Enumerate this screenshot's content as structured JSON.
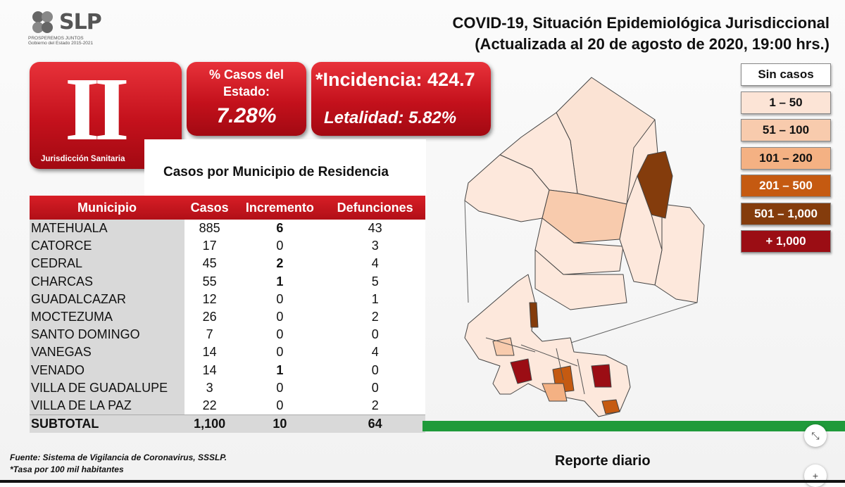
{
  "logo": {
    "text": "SLP",
    "line1": "PROSPEREMOS JUNTOS",
    "line2": "Gobierno del Estado 2015-2021"
  },
  "title": {
    "line1": "COVID-19, Situación Epidemiológica Jurisdiccional",
    "line2": "(Actualizada al 20 de agosto de 2020, 19:00 hrs.)"
  },
  "jurisdiccion": {
    "numeral": "II",
    "label": "Jurisdicción Sanitaria"
  },
  "pct": {
    "label": "% Casos del Estado:",
    "value": "7.28%"
  },
  "incidencia": {
    "text": "*Incidencia: 424.7",
    "letalidad": "Letalidad: 5.82%"
  },
  "table": {
    "subtitle": "Casos por Municipio  de Residencia",
    "headers": [
      "Municipio",
      "Casos",
      "Incremento",
      "Defunciones"
    ],
    "rows": [
      [
        "MATEHUALA",
        "885",
        "6",
        "43"
      ],
      [
        "CATORCE",
        "17",
        "0",
        "3"
      ],
      [
        "CEDRAL",
        "45",
        "2",
        "4"
      ],
      [
        "CHARCAS",
        "55",
        "1",
        "5"
      ],
      [
        "GUADALCAZAR",
        "12",
        "0",
        "1"
      ],
      [
        "MOCTEZUMA",
        "26",
        "0",
        "2"
      ],
      [
        "SANTO DOMINGO",
        "7",
        "0",
        "0"
      ],
      [
        "VANEGAS",
        "14",
        "0",
        "4"
      ],
      [
        "VENADO",
        "14",
        "1",
        "0"
      ],
      [
        "VILLA DE GUADALUPE",
        "3",
        "0",
        "0"
      ],
      [
        "VILLA DE LA PAZ",
        "22",
        "0",
        "2"
      ]
    ],
    "subtotal": [
      "SUBTOTAL",
      "1,100",
      "10",
      "64"
    ]
  },
  "legend": [
    {
      "label": "Sin casos",
      "color": "#ffffff",
      "text": "#111111"
    },
    {
      "label": "1 – 50",
      "color": "#fce4d6",
      "text": "#111111"
    },
    {
      "label": "51 – 100",
      "color": "#f8cbad",
      "text": "#111111"
    },
    {
      "label": "101 – 200",
      "color": "#f4b183",
      "text": "#111111"
    },
    {
      "label": "201 – 500",
      "color": "#c55a11",
      "text": "#ffffff"
    },
    {
      "label": "501 – 1,000",
      "color": "#843c0c",
      "text": "#ffffff"
    },
    {
      "label": "+ 1,000",
      "color": "#9b0d14",
      "text": "#ffffff"
    }
  ],
  "footer": {
    "line1": "Fuente: Sistema de Vigilancia de Coronavirus, SSSLP.",
    "line2": "*Tasa por 100 mil habitantes"
  },
  "reporte": "Reporte diario",
  "controls": {
    "shrink": "⤡",
    "plus": "+"
  }
}
